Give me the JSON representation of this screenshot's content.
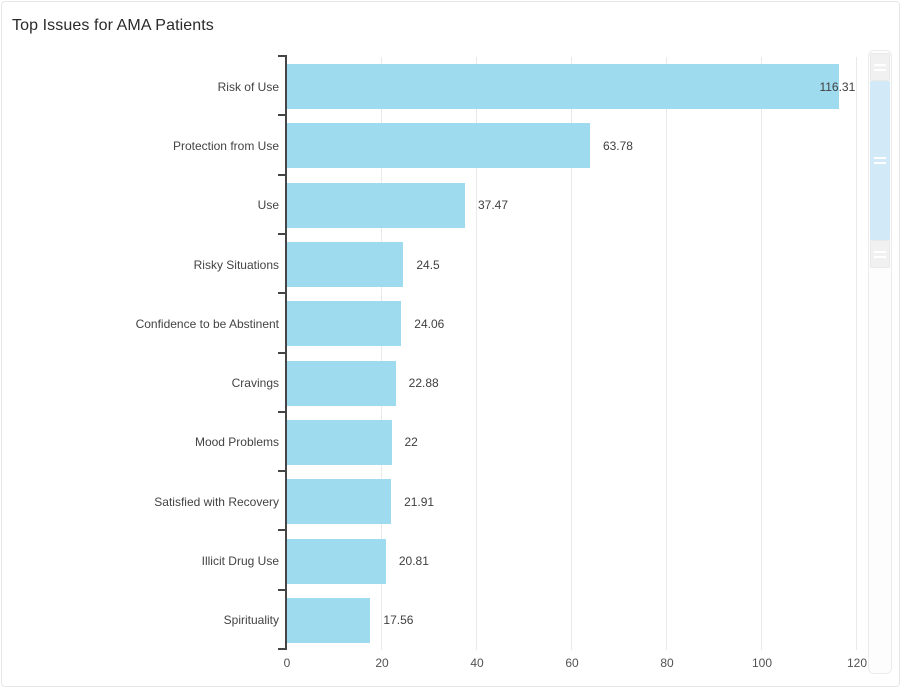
{
  "card": {
    "title": "Top Issues for AMA Patients"
  },
  "chart_data": {
    "type": "bar",
    "orientation": "horizontal",
    "title": "Top Issues for AMA Patients",
    "categories": [
      "Risk of Use",
      "Protection from Use",
      "Use",
      "Risky Situations",
      "Confidence to be Abstinent",
      "Cravings",
      "Mood Problems",
      "Satisfied with Recovery",
      "Illicit Drug Use",
      "Spirituality"
    ],
    "values": [
      116.31,
      63.78,
      37.47,
      24.5,
      24.06,
      22.88,
      22,
      21.91,
      20.81,
      17.56
    ],
    "value_labels": [
      "116.31",
      "63.78",
      "37.47",
      "24.5",
      "24.06",
      "22.88",
      "22",
      "21.91",
      "20.81",
      "17.56"
    ],
    "xlabel": "",
    "ylabel": "",
    "xlim": [
      0,
      121.5
    ],
    "xticks": [
      0,
      20,
      40,
      60,
      80,
      100,
      120
    ],
    "xtick_labels": [
      "0",
      "20",
      "40",
      "60",
      "80",
      "100",
      "120"
    ],
    "grid": "vertical",
    "legend": "none",
    "colors": {
      "bar": "#9fdbee",
      "axis": "#454545",
      "gridline": "#e9e9e9",
      "category_label": "#434343",
      "value_label": "#3f3f3f",
      "tick_label": "#525252",
      "title": "#2a2a2a"
    }
  },
  "scrollbar": {
    "orientation": "vertical",
    "colors": {
      "track": "#fdfdfd",
      "track_border": "#ececec",
      "thumb": "#d2e9f8",
      "grip": "#f1f1f1"
    }
  }
}
